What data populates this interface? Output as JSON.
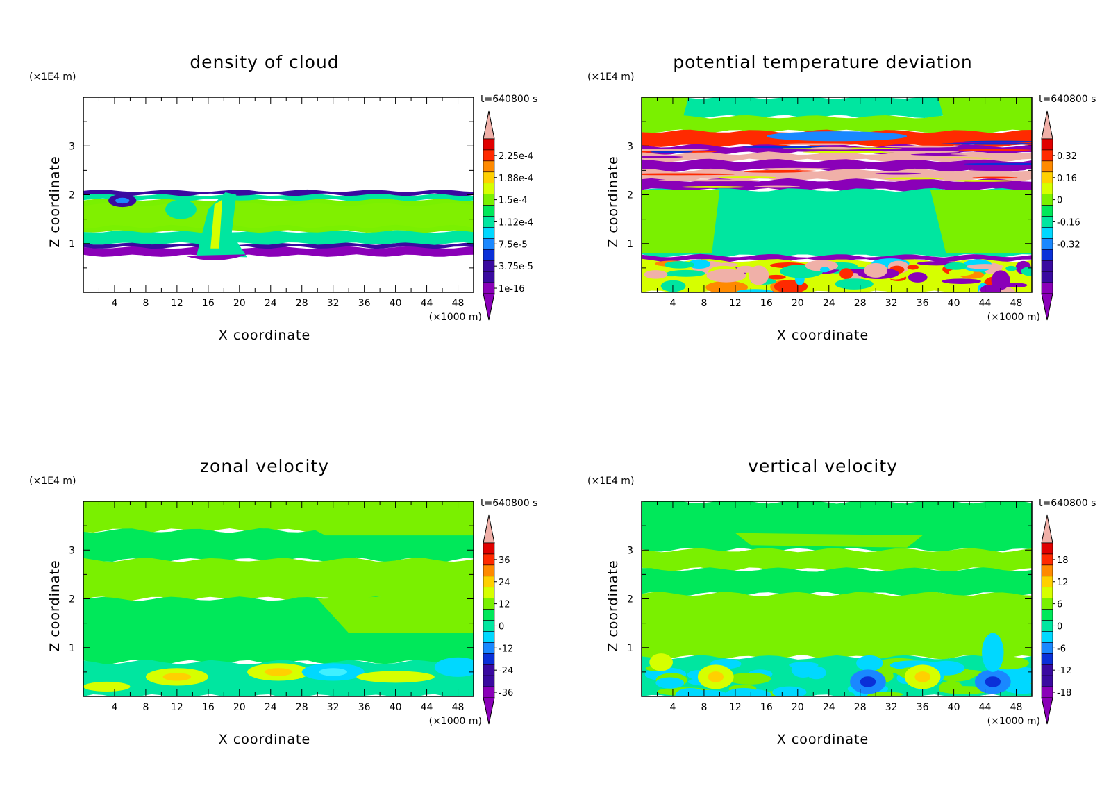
{
  "chart_data": [
    {
      "type": "heatmap",
      "title": "density of cloud",
      "xlabel": "X coordinate",
      "ylabel": "Z coordinate",
      "x_unit": "(×1000 m)",
      "y_unit": "(×1E4 m)",
      "time_label": "t=640800 s",
      "xlim": [
        0,
        50
      ],
      "ylim": [
        0,
        4
      ],
      "x_ticks": [
        "4",
        "8",
        "12",
        "16",
        "20",
        "24",
        "28",
        "32",
        "36",
        "40",
        "44",
        "48"
      ],
      "y_ticks": [
        "1",
        "2",
        "3"
      ],
      "colorbar_labels": [
        "2.25e-4",
        "1.88e-4",
        "1.5e-4",
        "1.12e-4",
        "7.5e-5",
        "3.75e-5",
        "1e-16"
      ],
      "layers": [
        {
          "z": [
            0.75,
            0.92
          ],
          "value": "1e-16"
        },
        {
          "z": [
            0.92,
            1.0
          ],
          "value": "3.75e-5"
        },
        {
          "z": [
            1.0,
            1.25
          ],
          "value": "1.12e-4"
        },
        {
          "z": [
            1.25,
            1.9
          ],
          "value": "1.5e-4"
        },
        {
          "z": [
            1.9,
            2.0
          ],
          "value": "1.12e-4"
        },
        {
          "z": [
            2.0,
            2.08
          ],
          "value": "3.75e-5"
        }
      ],
      "features": [
        {
          "x": 17.5,
          "z": 1.5,
          "value": "1.12e-4",
          "note": "updraft column"
        },
        {
          "x": 5,
          "z": 1.85,
          "value": "3.75e-5",
          "note": "eddy"
        }
      ]
    },
    {
      "type": "heatmap",
      "title": "potential temperature deviation",
      "xlabel": "X coordinate",
      "ylabel": "Z coordinate",
      "x_unit": "(×1000 m)",
      "y_unit": "(×1E4 m)",
      "time_label": "t=640800 s",
      "xlim": [
        0,
        50
      ],
      "ylim": [
        0,
        4
      ],
      "x_ticks": [
        "4",
        "8",
        "12",
        "16",
        "20",
        "24",
        "28",
        "32",
        "36",
        "40",
        "44",
        "48"
      ],
      "y_ticks": [
        "1",
        "2",
        "3"
      ],
      "colorbar_labels": [
        "0.32",
        "0.16",
        "0",
        "-0.16",
        "-0.32"
      ],
      "layers": [
        {
          "z": [
            3.6,
            4.0
          ],
          "value": -0.08
        },
        {
          "z": [
            3.3,
            3.6
          ],
          "value": 0.05
        },
        {
          "z": [
            3.0,
            3.3
          ],
          "value": 0.3
        },
        {
          "z": [
            2.85,
            3.0
          ],
          "value": -0.35
        },
        {
          "z": [
            2.7,
            2.85
          ],
          "value": 0.4
        },
        {
          "z": [
            2.5,
            2.7
          ],
          "value": -0.35
        },
        {
          "z": [
            2.3,
            2.5
          ],
          "value": 0.4
        },
        {
          "z": [
            2.1,
            2.3
          ],
          "value": -0.35
        },
        {
          "z": [
            0.75,
            2.1
          ],
          "value": -0.04
        },
        {
          "z": [
            0.65,
            0.75
          ],
          "value": -0.35
        },
        {
          "z": [
            0.0,
            0.65
          ],
          "value": 0.1
        }
      ]
    },
    {
      "type": "heatmap",
      "title": "zonal velocity",
      "xlabel": "X coordinate",
      "ylabel": "Z coordinate",
      "x_unit": "(×1000 m)",
      "y_unit": "(×1E4 m)",
      "time_label": "t=640800 s",
      "xlim": [
        0,
        50
      ],
      "ylim": [
        0,
        4
      ],
      "x_ticks": [
        "4",
        "8",
        "12",
        "16",
        "20",
        "24",
        "28",
        "32",
        "36",
        "40",
        "44",
        "48"
      ],
      "y_ticks": [
        "1",
        "2",
        "3"
      ],
      "colorbar_labels": [
        "36",
        "24",
        "12",
        "0",
        "-12",
        "-24",
        "-36"
      ],
      "layers": [
        {
          "z": [
            3.4,
            4.0
          ],
          "value": 2
        },
        {
          "z": [
            2.8,
            3.4
          ],
          "value": -2
        },
        {
          "z": [
            2.0,
            2.8
          ],
          "value": 2
        },
        {
          "z": [
            0.7,
            2.0
          ],
          "value": -2
        },
        {
          "z": [
            0.0,
            0.7
          ],
          "value": -6
        }
      ],
      "features": [
        {
          "x": 12,
          "z": 0.4,
          "value": 8
        },
        {
          "x": 25,
          "z": 0.5,
          "value": 10
        },
        {
          "x": 32,
          "z": 0.5,
          "value": -10
        }
      ]
    },
    {
      "type": "heatmap",
      "title": "vertical velocity",
      "xlabel": "X coordinate",
      "ylabel": "Z coordinate",
      "x_unit": "(×1000 m)",
      "y_unit": "(×1E4 m)",
      "time_label": "t=640800 s",
      "xlim": [
        0,
        50
      ],
      "ylim": [
        0,
        4
      ],
      "x_ticks": [
        "4",
        "8",
        "12",
        "16",
        "20",
        "24",
        "28",
        "32",
        "36",
        "40",
        "44",
        "48"
      ],
      "y_ticks": [
        "1",
        "2",
        "3"
      ],
      "colorbar_labels": [
        "18",
        "12",
        "6",
        "0",
        "-6",
        "-12",
        "-18"
      ],
      "layers": [
        {
          "z": [
            3.0,
            4.0
          ],
          "value": -0.5
        },
        {
          "z": [
            2.6,
            3.0
          ],
          "value": 0.5
        },
        {
          "z": [
            2.1,
            2.6
          ],
          "value": -0.5
        },
        {
          "z": [
            0.8,
            2.1
          ],
          "value": 0.5
        },
        {
          "z": [
            0.0,
            0.8
          ],
          "value": -2
        }
      ],
      "features": [
        {
          "x": 9.5,
          "z": 0.4,
          "value": 8
        },
        {
          "x": 36,
          "z": 0.4,
          "value": 8
        },
        {
          "x": 45,
          "z": 0.3,
          "value": -12
        },
        {
          "x": 29,
          "z": 0.3,
          "value": -8
        }
      ]
    }
  ],
  "colors": {
    "scale": [
      "#8a00b8",
      "#3a0aa0",
      "#0a30d8",
      "#1a88ff",
      "#00d8ff",
      "#00e6a0",
      "#00e85a",
      "#7af000",
      "#d6ff00",
      "#ffd000",
      "#ff8a00",
      "#ff2a00",
      "#e00000",
      "#f0b0a8"
    ]
  }
}
